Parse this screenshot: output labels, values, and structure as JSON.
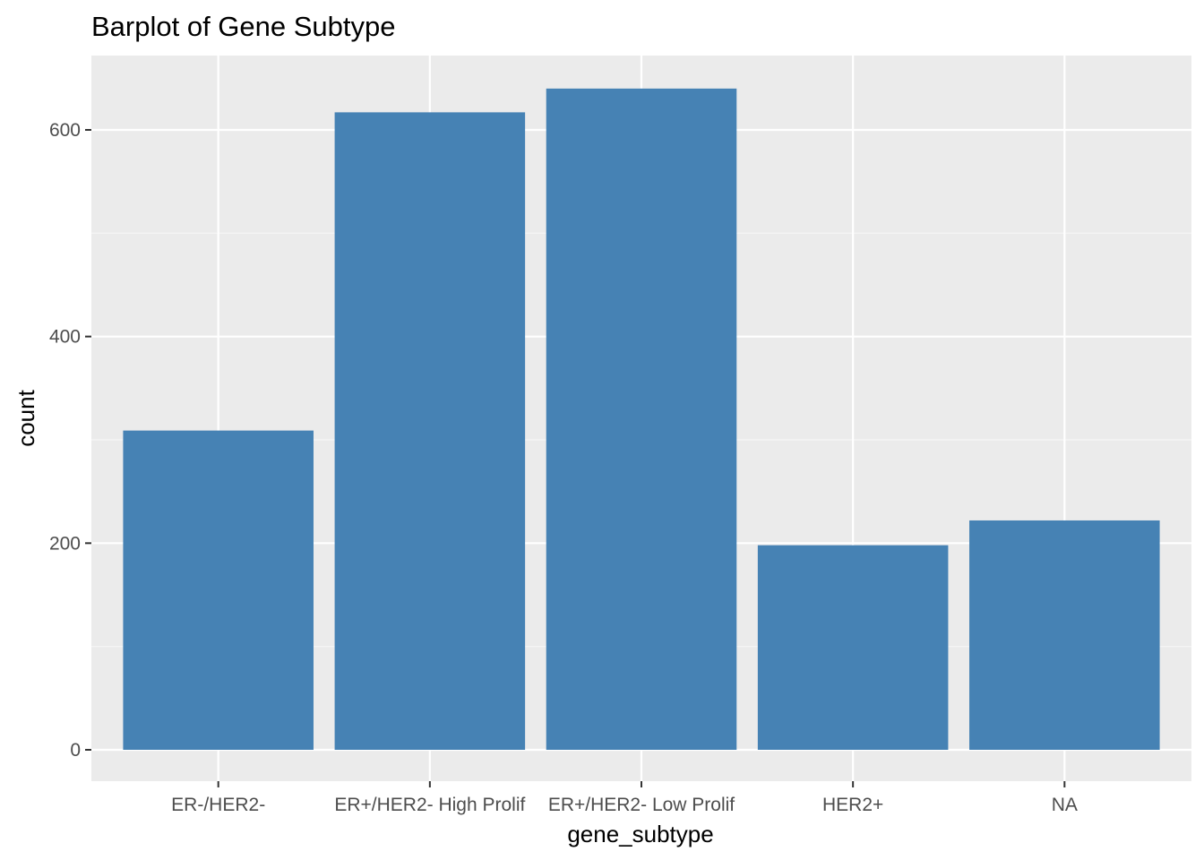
{
  "chart_data": {
    "type": "bar",
    "title": "Barplot of Gene Subtype",
    "xlabel": "gene_subtype",
    "ylabel": "count",
    "categories": [
      "ER-/HER2-",
      "ER+/HER2- High Prolif",
      "ER+/HER2- Low Prolif",
      "HER2+",
      "NA"
    ],
    "values": [
      309,
      617,
      640,
      198,
      222
    ],
    "ylim": [
      0,
      665
    ],
    "yticks": [
      0,
      200,
      400,
      600
    ],
    "ytick_labels": [
      "0",
      "200",
      "400",
      "600"
    ],
    "grid": true,
    "legend": "none",
    "colors": {
      "bar": "#4682B4",
      "panel": "#EBEBEB",
      "grid_major": "#FFFFFF",
      "grid_minor": "#F5F5F5",
      "tick": "#333333"
    }
  }
}
